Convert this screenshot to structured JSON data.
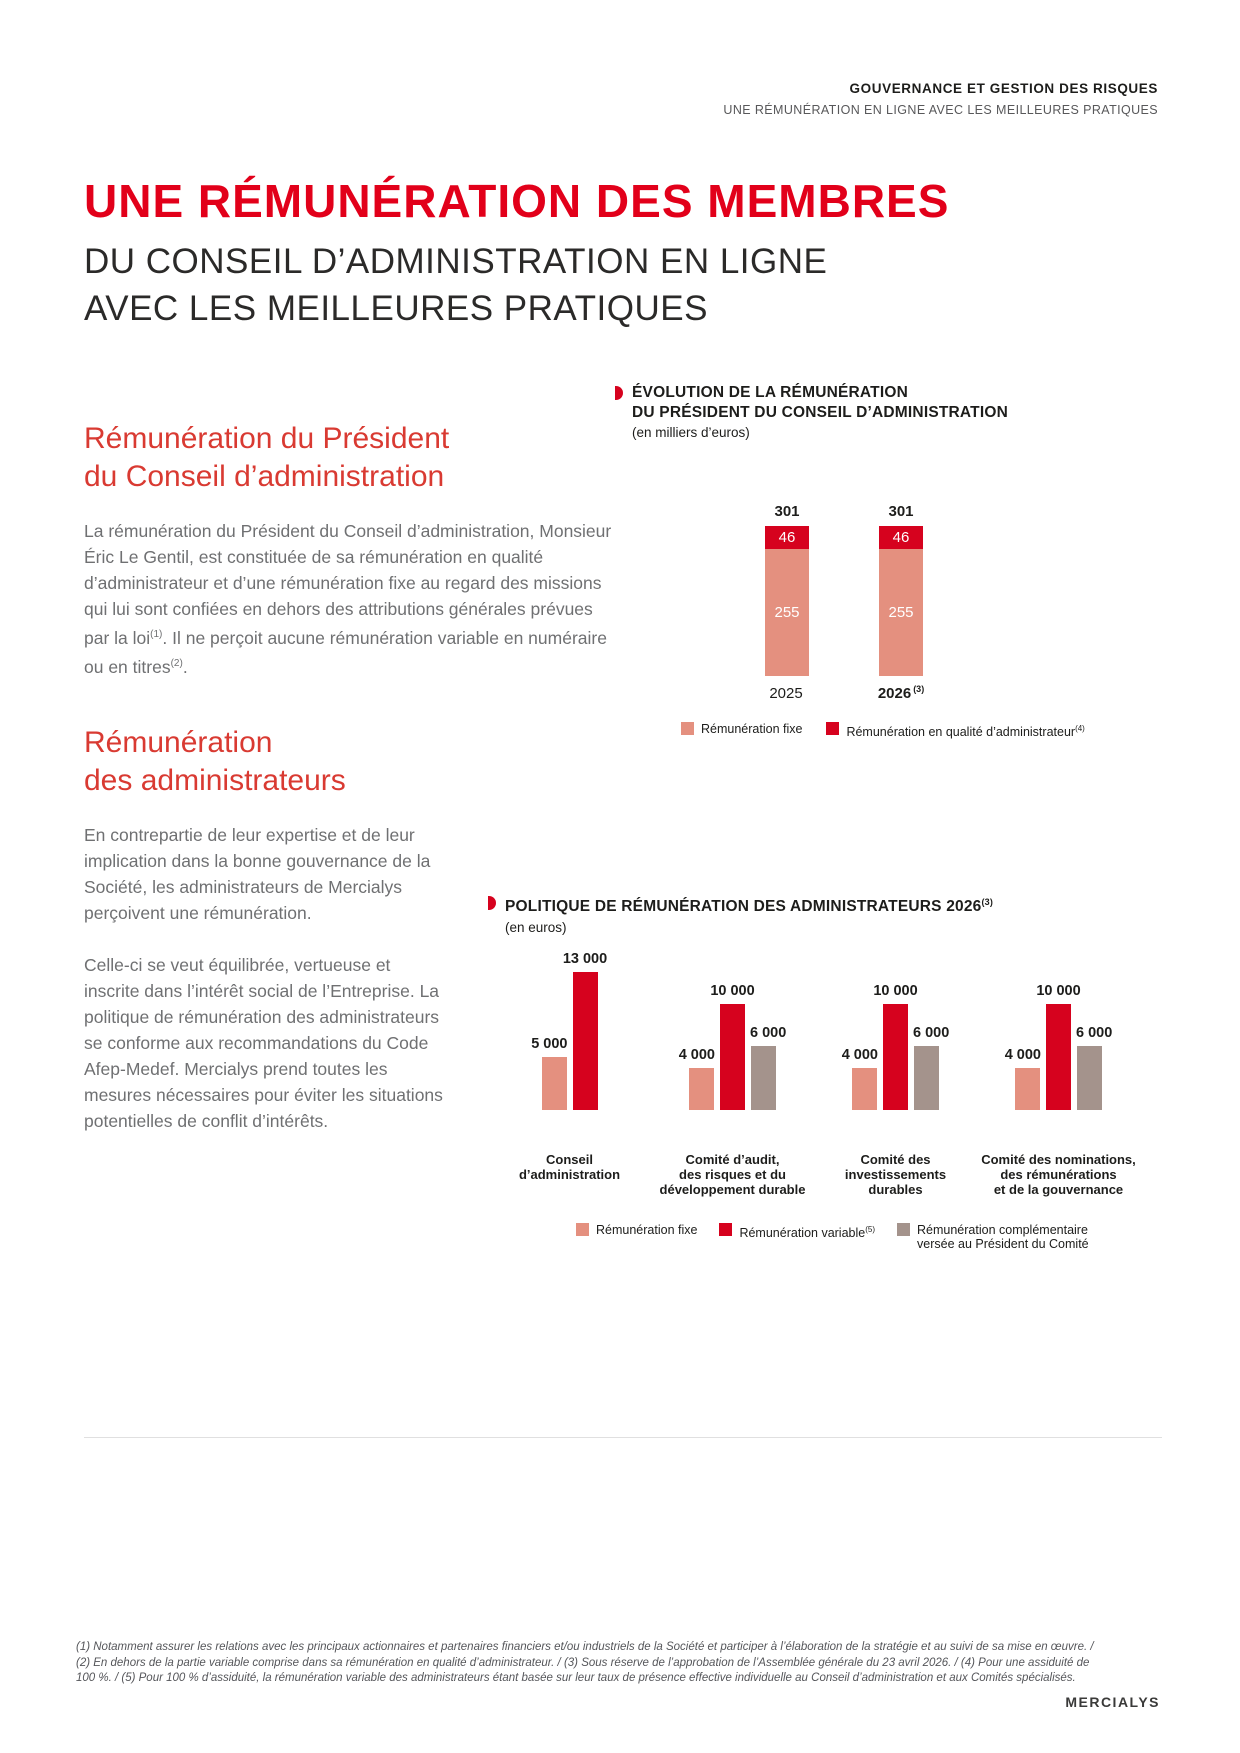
{
  "header": {
    "kicker": "GOUVERNANCE ET GESTION DES RISQUES",
    "subkicker": "UNE RÉMUNÉRATION EN LIGNE AVEC LES MEILLEURES PRATIQUES"
  },
  "title": {
    "line1": "UNE RÉMUNÉRATION DES MEMBRES",
    "line2": "DU CONSEIL D’ADMINISTRATION EN LIGNE",
    "line3": "AVEC LES MEILLEURES PRATIQUES"
  },
  "president_section": {
    "heading": "Rémunération du Président\ndu Conseil d’administration",
    "para_part1": "La rémunération du Président du Conseil d’administration, Monsieur Éric Le Gentil, est constituée de sa rémunération en qualité d’administrateur et d’une rémunération fixe au regard des missions qui lui sont confiées en dehors des attributions générales prévues par la loi",
    "para_sup1": "(1)",
    "para_part2": ". Il ne perçoit aucune rémunération variable en numéraire ou en titres",
    "para_sup2": "(2)",
    "para_part3": "."
  },
  "administrators_section": {
    "heading": "Rémunération\ndes administrateurs",
    "para1": "En contrepartie de leur expertise et de leur implication dans la bonne gouvernance de la Société, les administrateurs de Mercialys perçoivent une rémunération.",
    "para2": "Celle-ci se veut équilibrée, vertueuse et inscrite dans l’intérêt social de l’Entreprise. La politique de rémunération des administrateurs se conforme aux recommandations du Code Afep-Medef. Mercialys prend toutes les mesures nécessaires pour éviter les situations potentielles de conflit d’intérêts."
  },
  "chart_data": [
    {
      "type": "bar",
      "variant": "stacked",
      "title": "ÉVOLUTION DE LA RÉMUNÉRATION\nDU PRÉSIDENT DU CONSEIL D’ADMINISTRATION",
      "unit": "(en milliers d’euros)",
      "categories": [
        "2025",
        "2026"
      ],
      "category_sups": [
        "",
        "(3)"
      ],
      "totals": [
        301,
        301
      ],
      "ylim": [
        0,
        301
      ],
      "legend_position": "bottom",
      "series": [
        {
          "name": "Rémunération fixe",
          "sup": "",
          "color": "#e4907f",
          "values": [
            255,
            255
          ]
        },
        {
          "name": "Rémunération en qualité d’administrateur",
          "sup": "(4)",
          "color": "#d6021e",
          "values": [
            46,
            46
          ]
        }
      ]
    },
    {
      "type": "bar",
      "variant": "grouped",
      "title": "POLITIQUE DE RÉMUNÉRATION DES ADMINISTRATEURS 2026",
      "title_sup": "(3)",
      "unit": "(en euros)",
      "categories": [
        "Conseil\nd’administration",
        "Comité d’audit,\ndes risques et du\ndéveloppement durable",
        "Comité des\ninvestissements\ndurables",
        "Comité des nominations,\ndes rémunérations\net de la gouvernance"
      ],
      "ylim": [
        0,
        13000
      ],
      "legend_position": "bottom",
      "series": [
        {
          "name": "Rémunération fixe",
          "sup": "",
          "color": "#e4907f",
          "values": [
            5000,
            4000,
            4000,
            4000
          ],
          "labels": [
            "5 000",
            "4 000",
            "4 000",
            "4 000"
          ]
        },
        {
          "name": "Rémunération variable",
          "sup": "(5)",
          "color": "#d6021e",
          "values": [
            13000,
            10000,
            10000,
            10000
          ],
          "labels": [
            "13 000",
            "10 000",
            "10 000",
            "10 000"
          ]
        },
        {
          "name": "Rémunération complémentaire\nversée au Président du Comité",
          "sup": "",
          "color": "#a4938c",
          "values": [
            null,
            6000,
            6000,
            6000
          ],
          "labels": [
            null,
            "6 000",
            "6 000",
            "6 000"
          ]
        }
      ]
    }
  ],
  "footnotes": "(1) Notamment assurer les relations avec les principaux actionnaires et partenaires financiers et/ou industriels de la Société et participer à l’élaboration de la stratégie et au suivi de sa mise en œuvre. /\n(2) En dehors de la partie variable comprise dans sa rémunération en qualité d’administrateur. / (3) Sous réserve de l’approbation de l’Assemblée générale du 23 avril 2026. / (4) Pour une assiduité de\n100 %. / (5) Pour 100 % d’assiduité, la rémunération variable des administrateurs étant basée sur leur taux de présence effective individuelle au Conseil d’administration et aux Comités spécialisés.",
  "logo": {
    "text": "MERCIALYS"
  },
  "colors": {
    "title_red": "#e2001a",
    "heading_red": "#d93a32",
    "bar_red": "#d6021e",
    "bar_salmon": "#e4907f",
    "bar_taupe": "#a4938c",
    "text_dark": "#1d1d1b",
    "text_gray": "#6f7072"
  }
}
